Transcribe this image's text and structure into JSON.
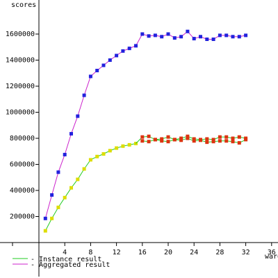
{
  "chart_data": {
    "type": "line",
    "ylabel": "scores",
    "xlabel": "warehouses",
    "xlim": [
      0,
      36
    ],
    "ylim": [
      0,
      1800000
    ],
    "x_ticks": [
      4,
      8,
      12,
      16,
      20,
      24,
      28,
      32,
      36
    ],
    "y_ticks": [
      200000,
      400000,
      600000,
      800000,
      1000000,
      1200000,
      1400000,
      1600000
    ],
    "legend": [
      {
        "label": "- Instance result",
        "color": "#22cc22"
      },
      {
        "label": "- Aggregated result",
        "color": "#cc22cc"
      }
    ],
    "aggregated": {
      "line_color": "#cc22cc",
      "marker_color": "#2222dd",
      "x": [
        1,
        2,
        3,
        4,
        5,
        6,
        7,
        8,
        9,
        10,
        11,
        12,
        13,
        14,
        15,
        16,
        17,
        18,
        19,
        20,
        21,
        22,
        23,
        24,
        25,
        26,
        27,
        28,
        29,
        30,
        31,
        32
      ],
      "values": [
        185000,
        365000,
        540000,
        675000,
        835000,
        970000,
        1130000,
        1275000,
        1320000,
        1360000,
        1400000,
        1435000,
        1470000,
        1490000,
        1510000,
        1600000,
        1585000,
        1590000,
        1580000,
        1600000,
        1570000,
        1580000,
        1620000,
        1565000,
        1580000,
        1560000,
        1560000,
        1590000,
        1590000,
        1580000,
        1580000,
        1590000
      ]
    },
    "instance": {
      "line_color": "#22cc22",
      "marker_color": "#dddd00",
      "x": [
        1,
        2,
        3,
        4,
        5,
        6,
        7,
        8,
        9,
        10,
        11,
        12,
        13,
        14,
        15
      ],
      "values": [
        90000,
        185000,
        270000,
        345000,
        420000,
        485000,
        565000,
        635000,
        660000,
        680000,
        705000,
        725000,
        740000,
        750000,
        760000
      ]
    },
    "instance_multi": {
      "marker_color": "#dd3311",
      "line_color": "#22cc22",
      "x": [
        16,
        17,
        18,
        19,
        20,
        21,
        22,
        23,
        24,
        25,
        26,
        27,
        28,
        29,
        30,
        31,
        32
      ],
      "upper": [
        810000,
        815000,
        790000,
        795000,
        810000,
        790000,
        800000,
        815000,
        795000,
        790000,
        795000,
        790000,
        810000,
        810000,
        800000,
        810000,
        800000
      ],
      "lower": [
        780000,
        775000,
        790000,
        780000,
        775000,
        790000,
        785000,
        800000,
        780000,
        785000,
        770000,
        775000,
        780000,
        780000,
        775000,
        765000,
        790000
      ]
    }
  }
}
